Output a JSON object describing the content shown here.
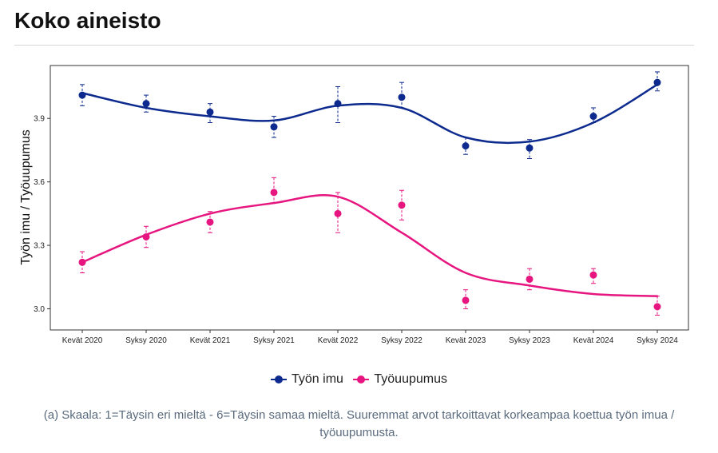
{
  "page": {
    "title": "Koko aineisto",
    "caption": "(a) Skaala: 1=Täysin eri mieltä - 6=Täysin samaa mieltä. Suuremmat arvot tarkoittavat korkeampaa koettua työn imua / työuupumusta."
  },
  "chart_data": {
    "type": "line",
    "title": "",
    "xlabel": "",
    "ylabel": "Työn imu / Työuupumus",
    "categories": [
      "Kevät 2020",
      "Syksy 2020",
      "Kevät 2021",
      "Syksy 2021",
      "Kevät 2022",
      "Syksy 2022",
      "Kevät 2023",
      "Syksy 2023",
      "Kevät 2024",
      "Syksy 2024"
    ],
    "ylim": [
      2.9,
      4.15
    ],
    "yticks": [
      3.0,
      3.3,
      3.6,
      3.9
    ],
    "ytick_labels": [
      "3.0",
      "3.3",
      "3.6",
      "3.9"
    ],
    "grid": false,
    "legend_position": "bottom",
    "series": [
      {
        "name": "Työn imu",
        "color": "#0d2a8e",
        "values": [
          4.01,
          3.97,
          3.93,
          3.86,
          3.97,
          4.0,
          3.77,
          3.76,
          3.91,
          4.07
        ],
        "ci_low": [
          3.96,
          3.93,
          3.88,
          3.81,
          3.88,
          3.95,
          3.73,
          3.71,
          3.88,
          4.03
        ],
        "ci_high": [
          4.06,
          4.01,
          3.97,
          3.91,
          4.05,
          4.07,
          3.81,
          3.8,
          3.95,
          4.12
        ],
        "trend": [
          4.02,
          3.95,
          3.91,
          3.89,
          3.96,
          3.95,
          3.81,
          3.79,
          3.88,
          4.06
        ]
      },
      {
        "name": "Työuupumus",
        "color": "#e6157f",
        "values": [
          3.22,
          3.34,
          3.41,
          3.55,
          3.45,
          3.49,
          3.04,
          3.14,
          3.16,
          3.01
        ],
        "ci_low": [
          3.17,
          3.29,
          3.36,
          3.5,
          3.36,
          3.42,
          3.0,
          3.09,
          3.12,
          2.97
        ],
        "ci_high": [
          3.27,
          3.39,
          3.46,
          3.62,
          3.55,
          3.56,
          3.09,
          3.19,
          3.19,
          3.06
        ],
        "trend": [
          3.22,
          3.35,
          3.45,
          3.5,
          3.53,
          3.36,
          3.17,
          3.11,
          3.07,
          3.06
        ]
      }
    ]
  }
}
